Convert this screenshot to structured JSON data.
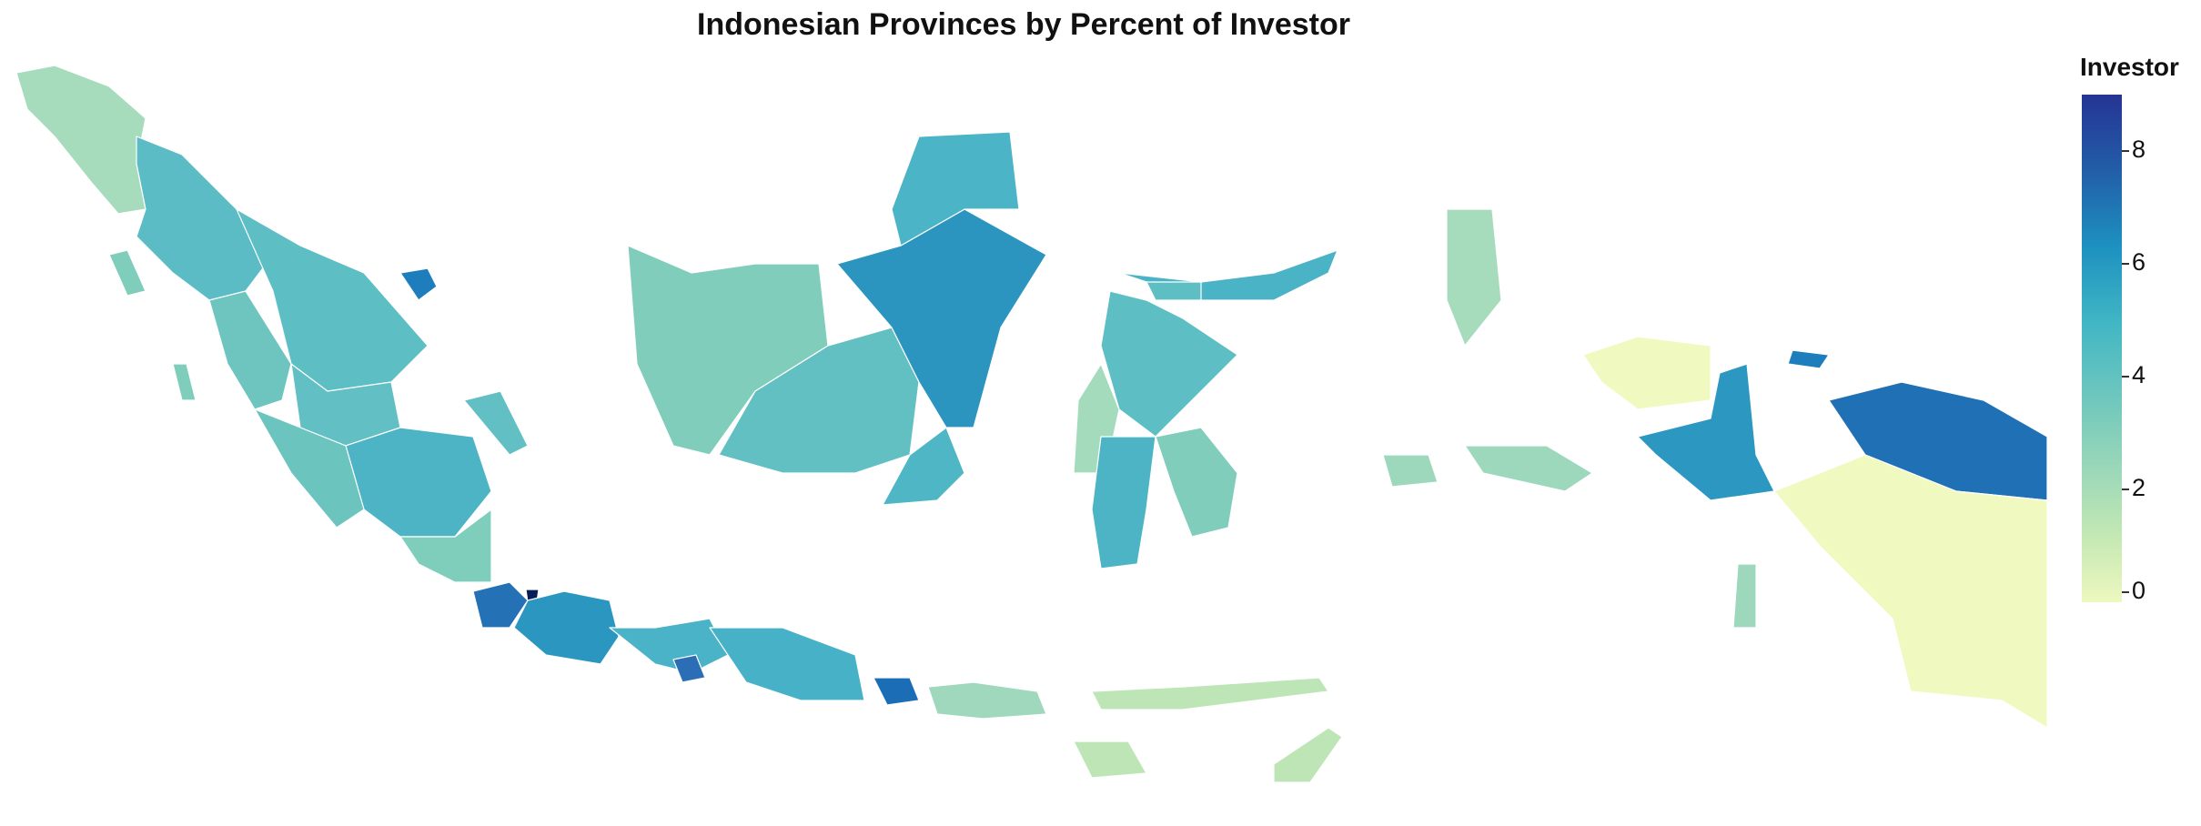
{
  "title": "Indonesian Provinces by Percent of Investor",
  "legend": {
    "title": "Investor",
    "ticks": [
      "0",
      "2",
      "4",
      "6",
      "8"
    ],
    "range": [
      0,
      9
    ],
    "colors": [
      "#edf8bf",
      "#c7e9b4",
      "#7fcdbb",
      "#41b6c4",
      "#1d91c0",
      "#225ea8",
      "#253494"
    ]
  }
}
